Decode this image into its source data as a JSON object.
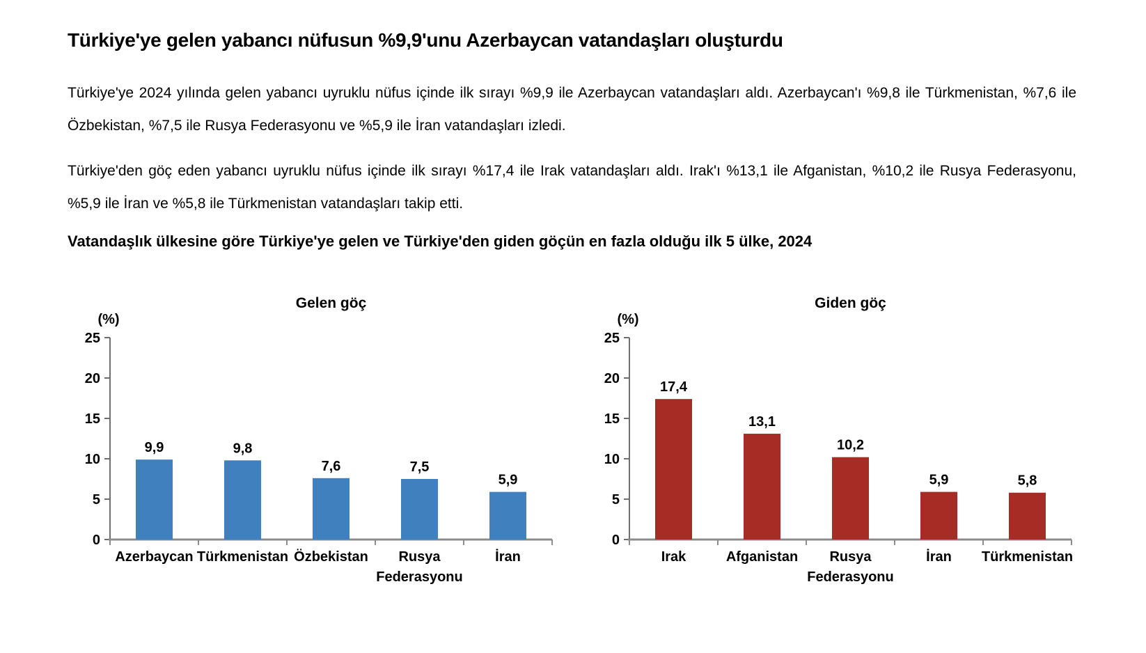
{
  "page": {
    "title": "Türkiye'ye gelen yabancı nüfusun %9,9'unu Azerbaycan vatandaşları oluşturdu",
    "paragraph_incoming": "Türkiye'ye 2024 yılında gelen yabancı uyruklu nüfus içinde ilk sırayı %9,9 ile Azerbaycan vatandaşları aldı. Azerbaycan'ı %9,8 ile Türkmenistan, %7,6 ile Özbekistan, %7,5 ile Rusya Federasyonu ve %5,9 ile İran vatandaşları izledi.",
    "paragraph_outgoing": "Türkiye'den göç eden yabancı uyruklu nüfus içinde ilk sırayı %17,4 ile Irak vatandaşları aldı. Irak'ı %13,1 ile Afganistan, %10,2 ile Rusya Federasyonu, %5,9 ile İran ve %5,8 ile Türkmenistan vatandaşları takip etti.",
    "chart_heading": "Vatandaşlık ülkesine göre Türkiye'ye gelen ve Türkiye'den giden göçün en fazla olduğu ilk 5 ülke, 2024"
  },
  "chart_data": [
    {
      "type": "bar",
      "title": "Gelen göç",
      "unit_label": "(%)",
      "categories": [
        "Azerbaycan",
        "Türkmenistan",
        "Özbekistan",
        "Rusya Federasyonu",
        "İran"
      ],
      "category_lines": [
        [
          "Azerbaycan"
        ],
        [
          "Türkmenistan"
        ],
        [
          "Özbekistan"
        ],
        [
          "Rusya",
          "Federasyonu"
        ],
        [
          "İran"
        ]
      ],
      "values": [
        9.9,
        9.8,
        7.6,
        7.5,
        5.9
      ],
      "value_labels": [
        "9,9",
        "9,8",
        "7,6",
        "7,5",
        "5,9"
      ],
      "bar_color": "#4180BE",
      "ylim": [
        0,
        25
      ],
      "yticks": [
        0,
        5,
        10,
        15,
        20,
        25
      ],
      "grid": false,
      "legend": "none",
      "xlabel": "",
      "ylabel": "(%)"
    },
    {
      "type": "bar",
      "title": "Giden göç",
      "unit_label": "(%)",
      "categories": [
        "Irak",
        "Afganistan",
        "Rusya Federasyonu",
        "İran",
        "Türkmenistan"
      ],
      "category_lines": [
        [
          "Irak"
        ],
        [
          "Afganistan"
        ],
        [
          "Rusya",
          "Federasyonu"
        ],
        [
          "İran"
        ],
        [
          "Türkmenistan"
        ]
      ],
      "values": [
        17.4,
        13.1,
        10.2,
        5.9,
        5.8
      ],
      "value_labels": [
        "17,4",
        "13,1",
        "10,2",
        "5,9",
        "5,8"
      ],
      "bar_color": "#A72C25",
      "ylim": [
        0,
        25
      ],
      "yticks": [
        0,
        5,
        10,
        15,
        20,
        25
      ],
      "grid": false,
      "legend": "none",
      "xlabel": "",
      "ylabel": "(%)"
    }
  ],
  "style": {
    "y_axis_color": "#6e6e6e",
    "x_axis_color": "#8c8c8c",
    "text_color": "#000000"
  }
}
